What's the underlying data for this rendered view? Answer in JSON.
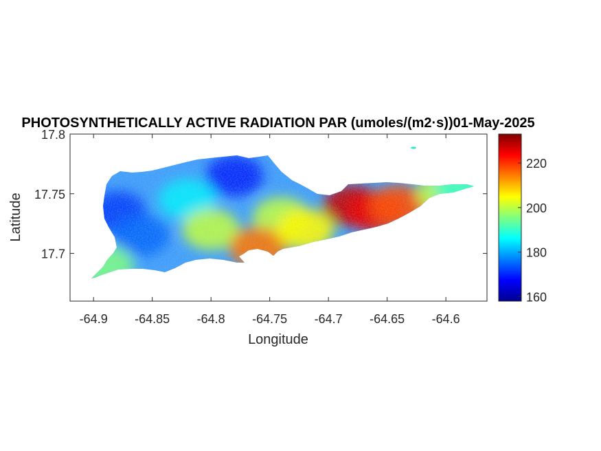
{
  "chart_data": {
    "type": "heatmap",
    "title": "PHOTOSYNTHETICALLY ACTIVE RADIATION PAR (umoles/(m2·s))01-May-2025",
    "xlabel": "Longitude",
    "ylabel": "Latitude",
    "xlim": [
      -64.92,
      -64.565
    ],
    "ylim": [
      17.66,
      17.8
    ],
    "x_ticks": [
      -64.9,
      -64.85,
      -64.8,
      -64.75,
      -64.7,
      -64.65,
      -64.6
    ],
    "x_tick_labels": [
      "-64.9",
      "-64.85",
      "-64.8",
      "-64.75",
      "-64.7",
      "-64.65",
      "-64.6"
    ],
    "y_ticks": [
      17.7,
      17.75,
      17.8
    ],
    "y_tick_labels": [
      "17.7",
      "17.75",
      "17.8"
    ],
    "colorbar": {
      "colormap": "jet",
      "range": [
        158,
        233
      ],
      "ticks": [
        160,
        180,
        200,
        220
      ],
      "tick_labels": [
        "160",
        "180",
        "200",
        "220"
      ]
    },
    "grid": false,
    "field_description": "PAR over St. Croix island; lowest values in the west and north-central area, highest values in the east around longitude -64.68 to -64.63",
    "region_values": [
      {
        "lon": -64.88,
        "lat": 17.735,
        "value": 172
      },
      {
        "lon": -64.86,
        "lat": 17.715,
        "value": 175
      },
      {
        "lon": -64.78,
        "lat": 17.765,
        "value": 170
      },
      {
        "lon": -64.82,
        "lat": 17.745,
        "value": 185
      },
      {
        "lon": -64.8,
        "lat": 17.72,
        "value": 200
      },
      {
        "lon": -64.74,
        "lat": 17.73,
        "value": 200
      },
      {
        "lon": -64.76,
        "lat": 17.705,
        "value": 215
      },
      {
        "lon": -64.72,
        "lat": 17.72,
        "value": 205
      },
      {
        "lon": -64.68,
        "lat": 17.74,
        "value": 228
      },
      {
        "lon": -64.66,
        "lat": 17.735,
        "value": 225
      },
      {
        "lon": -64.64,
        "lat": 17.74,
        "value": 218
      },
      {
        "lon": -64.6,
        "lat": 17.75,
        "value": 200
      },
      {
        "lon": -64.585,
        "lat": 17.755,
        "value": 190
      },
      {
        "lon": -64.89,
        "lat": 17.69,
        "value": 195
      }
    ]
  }
}
